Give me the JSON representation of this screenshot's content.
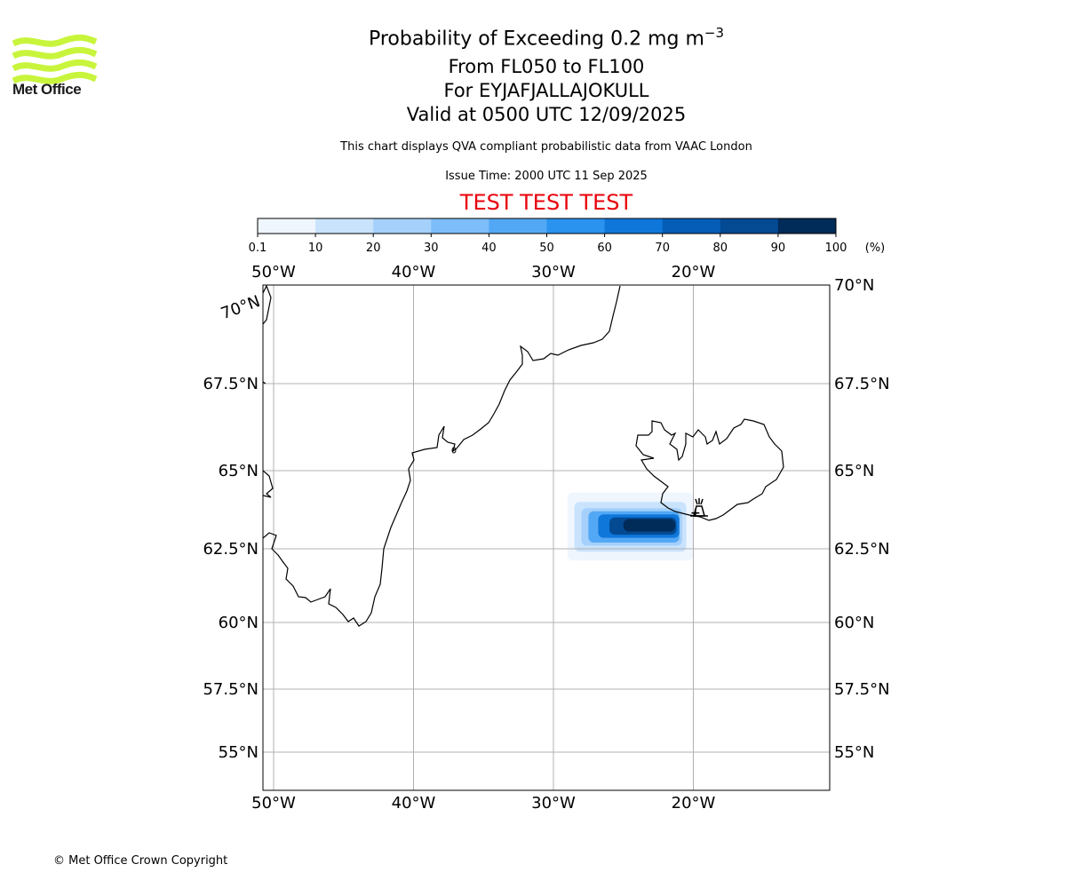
{
  "header": {
    "logo_text": "Met Office",
    "title_main": "Probability of Exceeding 0.2 mg m",
    "title_exponent": "−3",
    "title_levels": "From FL050 to FL100",
    "title_volcano": "For EYJAFJALLAJOKULL",
    "title_valid": "Valid at 0500 UTC 12/09/2025",
    "subtitle": "This chart displays QVA compliant probabilistic data from VAAC London",
    "issue_time": "Issue Time: 2000 UTC 11 Sep 2025",
    "test_banner": "TEST TEST TEST"
  },
  "colorbar": {
    "tick_labels": [
      "0.1",
      "10",
      "20",
      "30",
      "40",
      "50",
      "60",
      "70",
      "80",
      "90",
      "100"
    ],
    "unit": "(%)",
    "colors": [
      "#f0f6fe",
      "#c9e3fd",
      "#a4d0fb",
      "#7dbdf9",
      "#53a8f5",
      "#2a92ef",
      "#0f77da",
      "#055db8",
      "#034a92",
      "#012b59"
    ]
  },
  "map": {
    "lon_labels_top": [
      "50°W",
      "40°W",
      "30°W",
      "20°W"
    ],
    "lon_labels_bottom": [
      "50°W",
      "40°W",
      "30°W",
      "20°W"
    ],
    "lat_labels_left": [
      "70°N",
      "67.5°N",
      "65°N",
      "62.5°N",
      "60°N",
      "57.5°N",
      "55°N"
    ],
    "lat_labels_right": [
      "70°N",
      "67.5°N",
      "65°N",
      "62.5°N",
      "60°N",
      "57.5°N",
      "55°N"
    ],
    "volcano_symbol": "volcano-icon"
  },
  "chart_data": {
    "type": "heatmap",
    "title": "Probability of Exceeding 0.2 mg m−3",
    "x_label": "",
    "y_label": "",
    "lon_range": [
      -50,
      -10
    ],
    "lat_range": [
      54,
      70
    ],
    "bins": [
      0.1,
      10,
      20,
      30,
      40,
      50,
      60,
      70,
      80,
      90,
      100
    ],
    "volcano": {
      "name": "EYJAFJALLAJOKULL",
      "lon": -19.6,
      "lat": 63.6
    },
    "probability_regions": [
      {
        "level": "0.1-10",
        "lon_min": -29,
        "lon_max": -20,
        "lat_min": 62.1,
        "lat_max": 64.3
      },
      {
        "level": "10-20",
        "lon_min": -28.5,
        "lon_max": -20.5,
        "lat_min": 62.4,
        "lat_max": 64.0
      },
      {
        "level": "20-30",
        "lon_min": -28.0,
        "lon_max": -20.8,
        "lat_min": 62.6,
        "lat_max": 63.8
      },
      {
        "level": "40-50",
        "lon_min": -27.5,
        "lon_max": -21.0,
        "lat_min": 62.7,
        "lat_max": 63.7
      },
      {
        "level": "60-70",
        "lon_min": -26.8,
        "lon_max": -21.0,
        "lat_min": 62.85,
        "lat_max": 63.6
      },
      {
        "level": "80-90",
        "lon_min": -26.0,
        "lon_max": -21.2,
        "lat_min": 62.95,
        "lat_max": 63.5
      },
      {
        "level": "90-100",
        "lon_min": -25.0,
        "lon_max": -21.3,
        "lat_min": 63.05,
        "lat_max": 63.45
      }
    ],
    "grid": true,
    "legend": "colorbar-top"
  },
  "footer": {
    "copyright": "© Met Office Crown Copyright"
  }
}
